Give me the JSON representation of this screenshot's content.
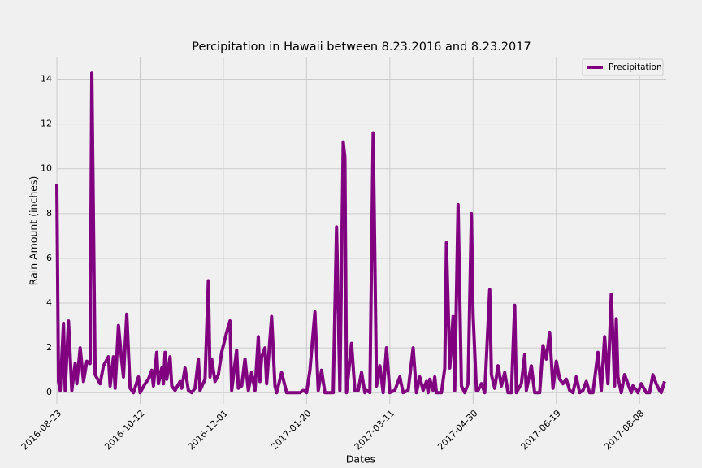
{
  "chart_data": {
    "type": "line",
    "title": "Percipitation in Hawaii between 8.23.2016 and 8.23.2017",
    "xlabel": "Dates",
    "ylabel": "Rain Amount (inches)",
    "x": [
      "2016-08-23",
      "2016-08-24",
      "2016-08-25",
      "2016-08-27",
      "2016-08-28",
      "2016-08-30",
      "2016-09-01",
      "2016-09-03",
      "2016-09-04",
      "2016-09-06",
      "2016-09-08",
      "2016-09-10",
      "2016-09-12",
      "2016-09-13",
      "2016-09-15",
      "2016-09-18",
      "2016-09-20",
      "2016-09-23",
      "2016-09-24",
      "2016-09-26",
      "2016-09-27",
      "2016-09-29",
      "2016-10-01",
      "2016-10-02",
      "2016-10-04",
      "2016-10-06",
      "2016-10-08",
      "2016-10-11",
      "2016-10-12",
      "2016-10-15",
      "2016-10-17",
      "2016-10-19",
      "2016-10-20",
      "2016-10-22",
      "2016-10-23",
      "2016-10-25",
      "2016-10-26",
      "2016-10-27",
      "2016-10-28",
      "2016-10-30",
      "2016-10-31",
      "2016-11-02",
      "2016-11-05",
      "2016-11-06",
      "2016-11-08",
      "2016-11-10",
      "2016-11-12",
      "2016-11-14",
      "2016-11-16",
      "2016-11-17",
      "2016-11-20",
      "2016-11-22",
      "2016-11-23",
      "2016-11-24",
      "2016-11-26",
      "2016-11-28",
      "2016-11-30",
      "2016-12-03",
      "2016-12-05",
      "2016-12-06",
      "2016-12-09",
      "2016-12-10",
      "2016-12-12",
      "2016-12-14",
      "2016-12-16",
      "2016-12-18",
      "2016-12-20",
      "2016-12-22",
      "2016-12-23",
      "2016-12-24",
      "2016-12-26",
      "2016-12-27",
      "2016-12-30",
      "2017-01-01",
      "2017-01-02",
      "2017-01-05",
      "2017-01-08",
      "2017-01-11",
      "2017-01-16",
      "2017-01-18",
      "2017-01-20",
      "2017-01-22",
      "2017-01-25",
      "2017-01-27",
      "2017-01-29",
      "2017-01-31",
      "2017-02-05",
      "2017-02-07",
      "2017-02-09",
      "2017-02-11",
      "2017-02-12",
      "2017-02-13",
      "2017-02-16",
      "2017-02-18",
      "2017-02-20",
      "2017-02-22",
      "2017-02-24",
      "2017-02-25",
      "2017-02-27",
      "2017-03-01",
      "2017-03-03",
      "2017-03-05",
      "2017-03-07",
      "2017-03-09",
      "2017-03-11",
      "2017-03-14",
      "2017-03-17",
      "2017-03-19",
      "2017-03-22",
      "2017-03-25",
      "2017-03-27",
      "2017-03-29",
      "2017-03-31",
      "2017-04-02",
      "2017-04-03",
      "2017-04-04",
      "2017-04-06",
      "2017-04-07",
      "2017-04-08",
      "2017-04-11",
      "2017-04-13",
      "2017-04-14",
      "2017-04-16",
      "2017-04-18",
      "2017-04-19",
      "2017-04-21",
      "2017-04-23",
      "2017-04-25",
      "2017-04-27",
      "2017-04-29",
      "2017-04-30",
      "2017-05-02",
      "2017-05-03",
      "2017-05-05",
      "2017-05-07",
      "2017-05-10",
      "2017-05-11",
      "2017-05-13",
      "2017-05-15",
      "2017-05-17",
      "2017-05-19",
      "2017-05-21",
      "2017-05-23",
      "2017-05-25",
      "2017-05-26",
      "2017-05-29",
      "2017-05-31",
      "2017-06-01",
      "2017-06-04",
      "2017-06-06",
      "2017-06-09",
      "2017-06-11",
      "2017-06-13",
      "2017-06-15",
      "2017-06-17",
      "2017-06-19",
      "2017-06-21",
      "2017-06-23",
      "2017-06-25",
      "2017-06-27",
      "2017-06-29",
      "2017-07-01",
      "2017-07-03",
      "2017-07-05",
      "2017-07-07",
      "2017-07-09",
      "2017-07-11",
      "2017-07-14",
      "2017-07-16",
      "2017-07-18",
      "2017-07-20",
      "2017-07-22",
      "2017-07-24",
      "2017-07-25",
      "2017-07-26",
      "2017-07-28",
      "2017-07-30",
      "2017-08-01",
      "2017-08-03",
      "2017-08-04",
      "2017-08-07",
      "2017-08-09",
      "2017-08-12",
      "2017-08-14",
      "2017-08-16",
      "2017-08-18",
      "2017-08-20",
      "2017-08-21",
      "2017-08-23"
    ],
    "series": [
      {
        "name": "Precipitation",
        "color": "#800080",
        "values": [
          9.3,
          0.5,
          0.1,
          3.1,
          0.1,
          3.2,
          0.1,
          1.3,
          0.4,
          2.0,
          0.5,
          1.4,
          1.3,
          14.3,
          0.8,
          0.4,
          1.2,
          1.6,
          0.3,
          1.6,
          0.2,
          3.0,
          1.4,
          0.7,
          3.5,
          0.2,
          0.0,
          0.7,
          0.0,
          0.4,
          0.6,
          1.0,
          0.3,
          1.8,
          0.4,
          1.1,
          0.4,
          1.8,
          0.6,
          1.6,
          0.3,
          0.1,
          0.5,
          0.2,
          1.1,
          0.1,
          0.0,
          0.2,
          1.5,
          0.1,
          0.6,
          5.0,
          0.7,
          1.5,
          0.5,
          0.8,
          1.8,
          2.7,
          3.2,
          0.1,
          1.9,
          0.2,
          0.3,
          1.5,
          0.1,
          0.9,
          0.1,
          2.5,
          0.5,
          1.6,
          2.0,
          0.4,
          3.4,
          0.3,
          0.0,
          0.9,
          0.0,
          0.0,
          0.0,
          0.1,
          0.0,
          1.0,
          3.6,
          0.1,
          1.0,
          0.0,
          0.0,
          7.4,
          0.1,
          11.2,
          10.5,
          0.0,
          2.2,
          0.1,
          0.1,
          0.9,
          0.0,
          0.1,
          0.0,
          11.6,
          0.3,
          1.2,
          0.0,
          2.0,
          0.0,
          0.1,
          0.7,
          0.0,
          0.1,
          2.0,
          0.0,
          0.7,
          0.1,
          0.5,
          0.0,
          0.6,
          0.1,
          0.7,
          0.0,
          0.0,
          1.1,
          6.7,
          1.1,
          3.4,
          0.1,
          8.4,
          0.3,
          0.0,
          0.4,
          8.0,
          3.5,
          0.1,
          0.1,
          0.4,
          0.0,
          4.6,
          0.8,
          0.2,
          1.2,
          0.3,
          0.9,
          0.0,
          0.0,
          3.9,
          0.0,
          0.4,
          1.7,
          0.1,
          1.2,
          0.0,
          0.0,
          2.1,
          1.5,
          2.7,
          0.2,
          1.4,
          0.6,
          0.4,
          0.6,
          0.1,
          0.0,
          0.7,
          0.0,
          0.1,
          0.5,
          0.0,
          0.0,
          1.8,
          0.1,
          2.5,
          0.4,
          4.4,
          0.3,
          3.3,
          0.7,
          0.0,
          0.8,
          0.4,
          0.0,
          0.3,
          0.0,
          0.4,
          0.0,
          0.0,
          0.8,
          0.4,
          0.1,
          0.0,
          0.5
        ]
      }
    ],
    "xlim": [
      "2016-08-23",
      "2017-08-24"
    ],
    "xticks": [
      "2016-08-23",
      "2016-10-12",
      "2016-12-01",
      "2017-01-20",
      "2017-03-11",
      "2017-04-30",
      "2017-06-19",
      "2017-08-08"
    ],
    "ylim": [
      -0.5,
      15
    ],
    "yticks": [
      0,
      2,
      4,
      6,
      8,
      10,
      12,
      14
    ],
    "grid": true,
    "legend": "upper right"
  }
}
